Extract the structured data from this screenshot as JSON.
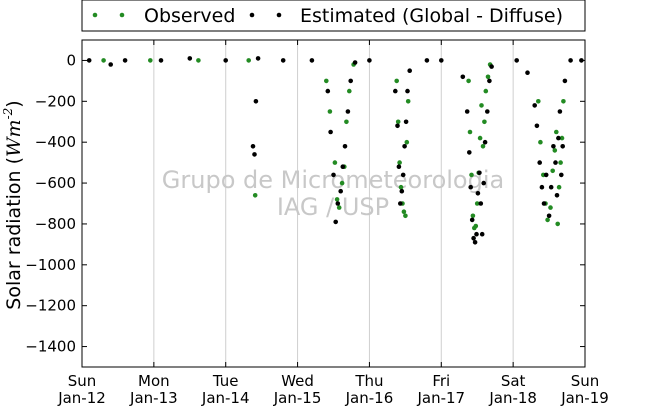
{
  "chart_data": {
    "type": "scatter",
    "ylabel_text": "Solar radiation (",
    "ylabel_var": "Wm",
    "ylabel_exp": "-2",
    "ylabel_close": ")",
    "ylim": [
      -1500,
      100
    ],
    "yticks": [
      0,
      -200,
      -400,
      -600,
      -800,
      -1000,
      -1200,
      -1400
    ],
    "xlim": [
      0,
      7
    ],
    "xticks": [
      {
        "day": "Sun",
        "date": "Jan-12"
      },
      {
        "day": "Mon",
        "date": "Jan-13"
      },
      {
        "day": "Tue",
        "date": "Jan-14"
      },
      {
        "day": "Wed",
        "date": "Jan-15"
      },
      {
        "day": "Thu",
        "date": "Jan-16"
      },
      {
        "day": "Fri",
        "date": "Jan-17"
      },
      {
        "day": "Sat",
        "date": "Jan-18"
      },
      {
        "day": "Sun",
        "date": "Jan-19"
      }
    ],
    "grid": "vertical",
    "legend_position": "top-outside",
    "watermark": [
      "Grupo de Micrometeorologia",
      "IAG / USP"
    ],
    "colors": {
      "observed": "#238b23",
      "estimated": "#000000",
      "watermark": "#c8c8c8"
    },
    "series": [
      {
        "name": "Observed",
        "color": "#238b23",
        "x": [
          0.3,
          0.95,
          1.62,
          2.32,
          2.41,
          3.4,
          3.45,
          3.52,
          3.55,
          3.58,
          3.62,
          3.65,
          3.68,
          3.72,
          3.78,
          4.38,
          4.4,
          4.42,
          4.44,
          4.46,
          4.48,
          4.5,
          4.52,
          4.54,
          5.38,
          5.4,
          5.42,
          5.44,
          5.46,
          5.48,
          5.5,
          5.52,
          5.54,
          5.56,
          5.58,
          5.6,
          5.62,
          5.65,
          5.68,
          6.35,
          6.38,
          6.42,
          6.45,
          6.48,
          6.52,
          6.55,
          6.58,
          6.6,
          6.62,
          6.64,
          6.66,
          6.68,
          6.7
        ],
        "y": [
          0,
          0,
          0,
          0,
          -660,
          -100,
          -250,
          -500,
          -680,
          -720,
          -600,
          -520,
          -300,
          -150,
          -20,
          -100,
          -300,
          -500,
          -620,
          -700,
          -740,
          -760,
          -400,
          -200,
          -100,
          -350,
          -560,
          -760,
          -820,
          -810,
          -700,
          -550,
          -380,
          -220,
          -420,
          -300,
          -150,
          -80,
          -20,
          -200,
          -400,
          -560,
          -700,
          -780,
          -720,
          -540,
          -440,
          -350,
          -800,
          -620,
          -500,
          -380,
          -200
        ]
      },
      {
        "name": "Estimated (Global - Diffuse)",
        "color": "#000000",
        "x": [
          0.1,
          0.4,
          0.6,
          1.1,
          1.5,
          2.0,
          2.38,
          2.4,
          2.42,
          2.45,
          2.8,
          3.2,
          3.42,
          3.46,
          3.5,
          3.53,
          3.56,
          3.6,
          3.63,
          3.66,
          3.7,
          3.74,
          3.8,
          4.0,
          4.36,
          4.39,
          4.41,
          4.43,
          4.45,
          4.47,
          4.49,
          4.51,
          4.53,
          4.56,
          4.8,
          5.0,
          5.3,
          5.36,
          5.39,
          5.41,
          5.43,
          5.45,
          5.47,
          5.49,
          5.51,
          5.53,
          5.55,
          5.57,
          5.59,
          5.61,
          5.64,
          5.67,
          5.7,
          6.05,
          6.2,
          6.3,
          6.33,
          6.37,
          6.4,
          6.43,
          6.46,
          6.5,
          6.53,
          6.56,
          6.59,
          6.61,
          6.63,
          6.65,
          6.67,
          6.69,
          6.72,
          6.8,
          6.95
        ],
        "y": [
          0,
          -20,
          0,
          0,
          10,
          0,
          -420,
          -460,
          -200,
          10,
          0,
          0,
          -150,
          -350,
          -560,
          -790,
          -700,
          -640,
          -520,
          -420,
          -250,
          -100,
          -10,
          0,
          -150,
          -320,
          -520,
          -700,
          -640,
          -560,
          -420,
          -300,
          -150,
          -50,
          0,
          0,
          -80,
          -250,
          -450,
          -620,
          -780,
          -870,
          -890,
          -850,
          -650,
          -550,
          -700,
          -850,
          -600,
          -400,
          -250,
          -100,
          -30,
          0,
          -60,
          -220,
          -320,
          -500,
          -620,
          -700,
          -560,
          -760,
          -620,
          -420,
          -500,
          -660,
          -380,
          -250,
          -560,
          -420,
          -100,
          0,
          0
        ]
      }
    ]
  }
}
